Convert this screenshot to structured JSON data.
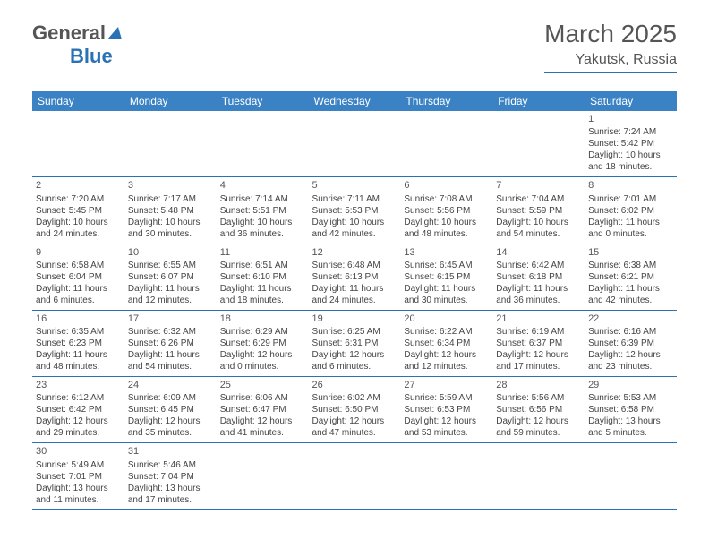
{
  "logo": {
    "text1": "General",
    "text2": "Blue"
  },
  "header": {
    "title": "March 2025",
    "location": "Yakutsk, Russia"
  },
  "colors": {
    "accent": "#2a72b5",
    "header_bg": "#3b82c4",
    "text": "#444"
  },
  "days_of_week": [
    "Sunday",
    "Monday",
    "Tuesday",
    "Wednesday",
    "Thursday",
    "Friday",
    "Saturday"
  ],
  "calendar": {
    "first_weekday_index": 6,
    "num_days": 31,
    "cells": [
      {
        "d": 1,
        "sr": "7:24 AM",
        "ss": "5:42 PM",
        "dl": "10 hours and 18 minutes."
      },
      {
        "d": 2,
        "sr": "7:20 AM",
        "ss": "5:45 PM",
        "dl": "10 hours and 24 minutes."
      },
      {
        "d": 3,
        "sr": "7:17 AM",
        "ss": "5:48 PM",
        "dl": "10 hours and 30 minutes."
      },
      {
        "d": 4,
        "sr": "7:14 AM",
        "ss": "5:51 PM",
        "dl": "10 hours and 36 minutes."
      },
      {
        "d": 5,
        "sr": "7:11 AM",
        "ss": "5:53 PM",
        "dl": "10 hours and 42 minutes."
      },
      {
        "d": 6,
        "sr": "7:08 AM",
        "ss": "5:56 PM",
        "dl": "10 hours and 48 minutes."
      },
      {
        "d": 7,
        "sr": "7:04 AM",
        "ss": "5:59 PM",
        "dl": "10 hours and 54 minutes."
      },
      {
        "d": 8,
        "sr": "7:01 AM",
        "ss": "6:02 PM",
        "dl": "11 hours and 0 minutes."
      },
      {
        "d": 9,
        "sr": "6:58 AM",
        "ss": "6:04 PM",
        "dl": "11 hours and 6 minutes."
      },
      {
        "d": 10,
        "sr": "6:55 AM",
        "ss": "6:07 PM",
        "dl": "11 hours and 12 minutes."
      },
      {
        "d": 11,
        "sr": "6:51 AM",
        "ss": "6:10 PM",
        "dl": "11 hours and 18 minutes."
      },
      {
        "d": 12,
        "sr": "6:48 AM",
        "ss": "6:13 PM",
        "dl": "11 hours and 24 minutes."
      },
      {
        "d": 13,
        "sr": "6:45 AM",
        "ss": "6:15 PM",
        "dl": "11 hours and 30 minutes."
      },
      {
        "d": 14,
        "sr": "6:42 AM",
        "ss": "6:18 PM",
        "dl": "11 hours and 36 minutes."
      },
      {
        "d": 15,
        "sr": "6:38 AM",
        "ss": "6:21 PM",
        "dl": "11 hours and 42 minutes."
      },
      {
        "d": 16,
        "sr": "6:35 AM",
        "ss": "6:23 PM",
        "dl": "11 hours and 48 minutes."
      },
      {
        "d": 17,
        "sr": "6:32 AM",
        "ss": "6:26 PM",
        "dl": "11 hours and 54 minutes."
      },
      {
        "d": 18,
        "sr": "6:29 AM",
        "ss": "6:29 PM",
        "dl": "12 hours and 0 minutes."
      },
      {
        "d": 19,
        "sr": "6:25 AM",
        "ss": "6:31 PM",
        "dl": "12 hours and 6 minutes."
      },
      {
        "d": 20,
        "sr": "6:22 AM",
        "ss": "6:34 PM",
        "dl": "12 hours and 12 minutes."
      },
      {
        "d": 21,
        "sr": "6:19 AM",
        "ss": "6:37 PM",
        "dl": "12 hours and 17 minutes."
      },
      {
        "d": 22,
        "sr": "6:16 AM",
        "ss": "6:39 PM",
        "dl": "12 hours and 23 minutes."
      },
      {
        "d": 23,
        "sr": "6:12 AM",
        "ss": "6:42 PM",
        "dl": "12 hours and 29 minutes."
      },
      {
        "d": 24,
        "sr": "6:09 AM",
        "ss": "6:45 PM",
        "dl": "12 hours and 35 minutes."
      },
      {
        "d": 25,
        "sr": "6:06 AM",
        "ss": "6:47 PM",
        "dl": "12 hours and 41 minutes."
      },
      {
        "d": 26,
        "sr": "6:02 AM",
        "ss": "6:50 PM",
        "dl": "12 hours and 47 minutes."
      },
      {
        "d": 27,
        "sr": "5:59 AM",
        "ss": "6:53 PM",
        "dl": "12 hours and 53 minutes."
      },
      {
        "d": 28,
        "sr": "5:56 AM",
        "ss": "6:56 PM",
        "dl": "12 hours and 59 minutes."
      },
      {
        "d": 29,
        "sr": "5:53 AM",
        "ss": "6:58 PM",
        "dl": "13 hours and 5 minutes."
      },
      {
        "d": 30,
        "sr": "5:49 AM",
        "ss": "7:01 PM",
        "dl": "13 hours and 11 minutes."
      },
      {
        "d": 31,
        "sr": "5:46 AM",
        "ss": "7:04 PM",
        "dl": "13 hours and 17 minutes."
      }
    ]
  },
  "labels": {
    "sunrise": "Sunrise:",
    "sunset": "Sunset:",
    "daylight": "Daylight:"
  }
}
